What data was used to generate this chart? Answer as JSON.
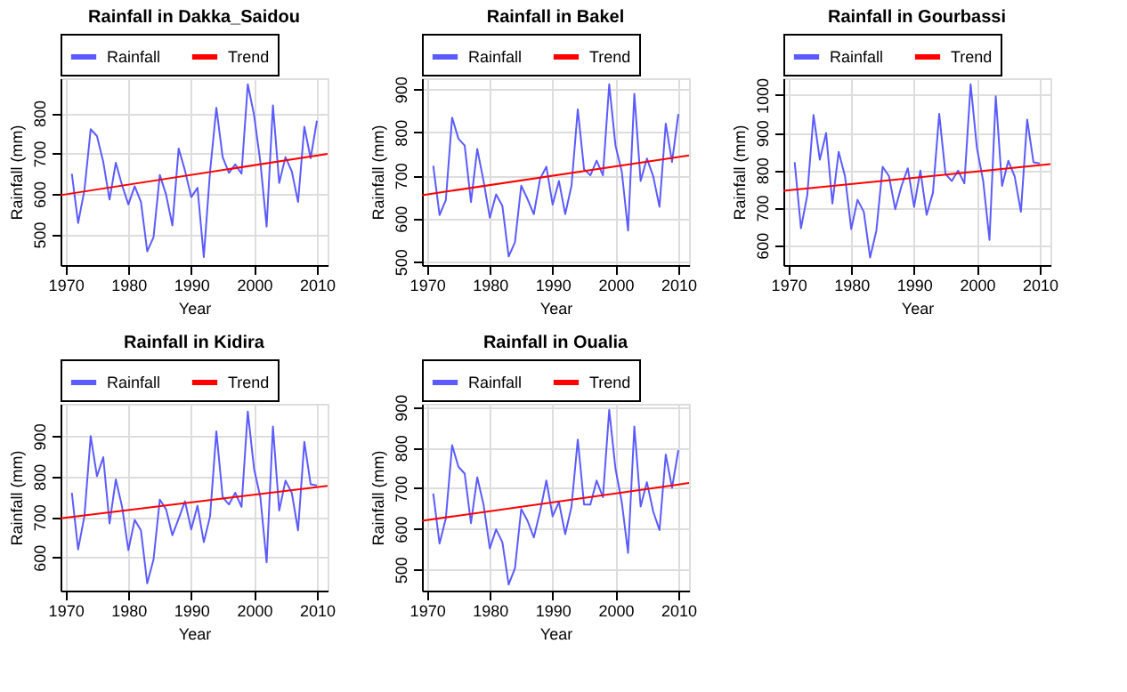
{
  "chart_data": [
    {
      "type": "line",
      "title": "Rainfall in Dakka_Saidou",
      "xlabel": "Year",
      "ylabel": "Rainfall (mm)",
      "xlim": [
        1969.2,
        2011.7
      ],
      "xticks": [
        1970,
        1980,
        1990,
        2000,
        2010
      ],
      "ylim": [
        424,
        886
      ],
      "yticks": [
        500,
        600,
        700,
        800
      ],
      "grid": true,
      "legend": "top",
      "series": [
        {
          "name": "Rainfall",
          "color": "#5b5bff",
          "x": [
            1971,
            1972,
            1973,
            1974,
            1975,
            1976,
            1977,
            1978,
            1979,
            1980,
            1981,
            1982,
            1983,
            1984,
            1985,
            1986,
            1987,
            1988,
            1989,
            1990,
            1991,
            1992,
            1993,
            1994,
            1995,
            1996,
            1997,
            1998,
            1999,
            2000,
            2001,
            2002,
            2003,
            2004,
            2005,
            2006,
            2007,
            2008,
            2009,
            2010
          ],
          "values": [
            650,
            528,
            609,
            760,
            743,
            679,
            586,
            677,
            621,
            574,
            619,
            580,
            458,
            493,
            647,
            598,
            522,
            712,
            658,
            592,
            615,
            444,
            656,
            813,
            691,
            652,
            673,
            650,
            871,
            795,
            679,
            519,
            819,
            627,
            691,
            656,
            580,
            766,
            688,
            781
          ]
        },
        {
          "name": "Trend",
          "color": "#ff0000",
          "x": [
            1969.2,
            2011.7
          ],
          "values": [
            597,
            699
          ]
        }
      ]
    },
    {
      "type": "line",
      "title": "Rainfall in Bakel",
      "xlabel": "Year",
      "ylabel": "Rainfall (mm)",
      "xlim": [
        1969.2,
        2011.7
      ],
      "xticks": [
        1970,
        1980,
        1990,
        2000,
        2010
      ],
      "ylim": [
        492,
        925
      ],
      "yticks": [
        500,
        600,
        700,
        800,
        900
      ],
      "grid": true,
      "legend": "top",
      "series": [
        {
          "name": "Rainfall",
          "color": "#5b5bff",
          "x": [
            1971,
            1972,
            1973,
            1974,
            1975,
            1976,
            1977,
            1978,
            1979,
            1980,
            1981,
            1982,
            1983,
            1984,
            1985,
            1986,
            1987,
            1988,
            1989,
            1990,
            1991,
            1992,
            1993,
            1994,
            1995,
            1996,
            1997,
            1998,
            1999,
            2000,
            2001,
            2002,
            2003,
            2004,
            2005,
            2006,
            2007,
            2008,
            2009,
            2010
          ],
          "values": [
            722,
            608,
            643,
            834,
            785,
            769,
            638,
            761,
            687,
            602,
            656,
            629,
            512,
            545,
            676,
            645,
            610,
            692,
            720,
            632,
            687,
            610,
            676,
            853,
            714,
            700,
            734,
            700,
            911,
            769,
            709,
            572,
            889,
            687,
            739,
            698,
            627,
            820,
            731,
            842
          ]
        },
        {
          "name": "Trend",
          "color": "#ff0000",
          "x": [
            1969.2,
            2011.7
          ],
          "values": [
            654,
            746
          ]
        }
      ]
    },
    {
      "type": "line",
      "title": "Rainfall in Gourbassi",
      "xlabel": "Year",
      "ylabel": "Rainfall (mm)",
      "xlim": [
        1969.2,
        2011.7
      ],
      "xticks": [
        1970,
        1980,
        1990,
        2000,
        2010
      ],
      "ylim": [
        547,
        1045
      ],
      "yticks": [
        600,
        700,
        800,
        900,
        1000
      ],
      "grid": true,
      "legend": "top",
      "series": [
        {
          "name": "Rainfall",
          "color": "#5b5bff",
          "x": [
            1971,
            1972,
            1973,
            1974,
            1975,
            1976,
            1977,
            1978,
            1979,
            1980,
            1981,
            1982,
            1983,
            1984,
            1985,
            1986,
            1987,
            1988,
            1989,
            1990,
            1991,
            1992,
            1993,
            1994,
            1995,
            1996,
            1997,
            1998,
            1999,
            2000,
            2001,
            2002,
            2003,
            2004,
            2005,
            2006,
            2007,
            2008,
            2009,
            2010
          ],
          "values": [
            821,
            645,
            733,
            947,
            828,
            899,
            711,
            849,
            784,
            643,
            721,
            689,
            567,
            639,
            809,
            784,
            696,
            758,
            805,
            702,
            799,
            681,
            740,
            950,
            790,
            771,
            799,
            765,
            1029,
            859,
            771,
            614,
            997,
            758,
            825,
            784,
            689,
            935,
            821,
            818
          ]
        },
        {
          "name": "Trend",
          "color": "#ff0000",
          "x": [
            1969.2,
            2011.7
          ],
          "values": [
            745,
            816
          ]
        }
      ]
    },
    {
      "type": "line",
      "title": "Rainfall in Kidira",
      "xlabel": "Year",
      "ylabel": "Rainfall (mm)",
      "xlim": [
        1969.2,
        2011.7
      ],
      "xticks": [
        1970,
        1980,
        1990,
        2000,
        2010
      ],
      "ylim": [
        518,
        980
      ],
      "yticks": [
        600,
        700,
        800,
        900
      ],
      "grid": true,
      "legend": "top",
      "series": [
        {
          "name": "Rainfall",
          "color": "#5b5bff",
          "x": [
            1971,
            1972,
            1973,
            1974,
            1975,
            1976,
            1977,
            1978,
            1979,
            1980,
            1981,
            1982,
            1983,
            1984,
            1985,
            1986,
            1987,
            1988,
            1989,
            1990,
            1991,
            1992,
            1993,
            1994,
            1995,
            1996,
            1997,
            1998,
            1999,
            2000,
            2001,
            2002,
            2003,
            2004,
            2005,
            2006,
            2007,
            2008,
            2009,
            2010
          ],
          "values": [
            760,
            620,
            702,
            900,
            801,
            848,
            684,
            793,
            725,
            618,
            693,
            667,
            536,
            595,
            743,
            719,
            655,
            696,
            739,
            669,
            728,
            638,
            702,
            912,
            749,
            731,
            760,
            725,
            961,
            819,
            749,
            588,
            924,
            716,
            790,
            760,
            667,
            886,
            781,
            778
          ]
        },
        {
          "name": "Trend",
          "color": "#ff0000",
          "x": [
            1969.2,
            2011.7
          ],
          "values": [
            697,
            777
          ]
        }
      ]
    },
    {
      "type": "line",
      "title": "Rainfall in Oualia",
      "xlabel": "Year",
      "ylabel": "Rainfall (mm)",
      "xlim": [
        1969.2,
        2011.7
      ],
      "xticks": [
        1970,
        1980,
        1990,
        2000,
        2010
      ],
      "ylim": [
        448,
        908
      ],
      "yticks": [
        500,
        600,
        700,
        800,
        900
      ],
      "grid": true,
      "legend": "top",
      "series": [
        {
          "name": "Rainfall",
          "color": "#5b5bff",
          "x": [
            1971,
            1972,
            1973,
            1974,
            1975,
            1976,
            1977,
            1978,
            1979,
            1980,
            1981,
            1982,
            1983,
            1984,
            1985,
            1986,
            1987,
            1988,
            1989,
            1990,
            1991,
            1992,
            1993,
            1994,
            1995,
            1996,
            1997,
            1998,
            1999,
            2000,
            2001,
            2002,
            2003,
            2004,
            2005,
            2006,
            2007,
            2008,
            2009,
            2010
          ],
          "values": [
            687,
            564,
            626,
            806,
            753,
            736,
            614,
            727,
            660,
            552,
            599,
            567,
            463,
            503,
            649,
            620,
            579,
            643,
            719,
            631,
            666,
            587,
            655,
            820,
            660,
            660,
            719,
            678,
            893,
            748,
            666,
            541,
            852,
            655,
            715,
            643,
            597,
            783,
            701,
            794
          ]
        },
        {
          "name": "Trend",
          "color": "#ff0000",
          "x": [
            1969.2,
            2011.7
          ],
          "values": [
            620,
            713
          ]
        }
      ]
    }
  ]
}
